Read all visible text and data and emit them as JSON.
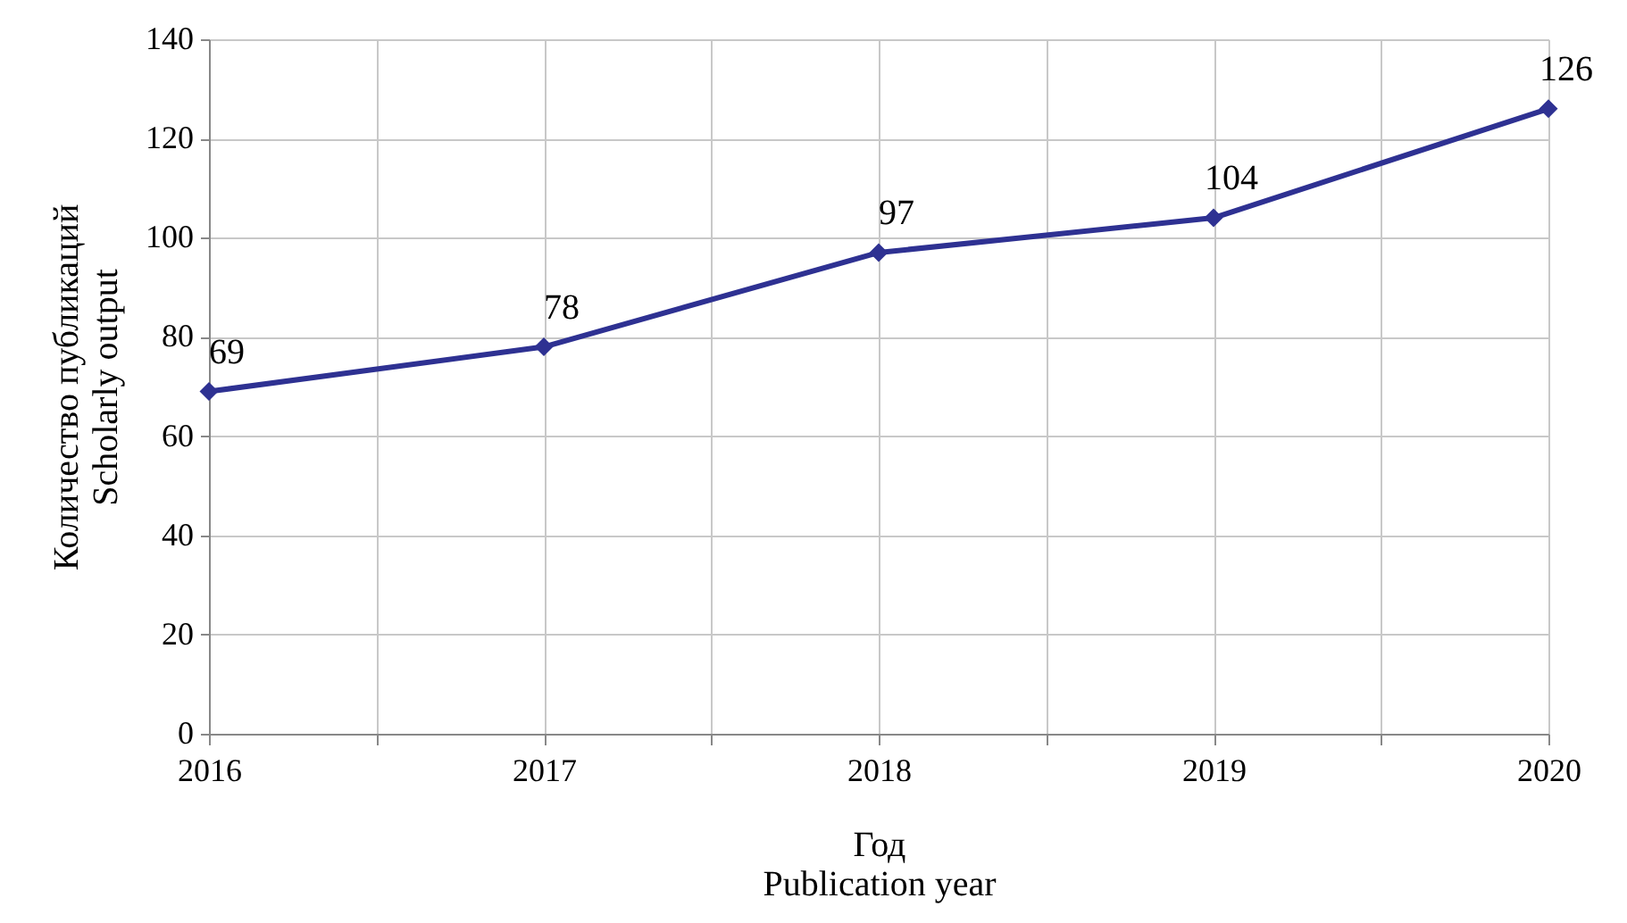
{
  "chart_data": {
    "type": "line",
    "xlabel": "Год\nPublication year",
    "ylabel": "Количество публикаций\nScholarly output",
    "x": [
      2016,
      2017,
      2018,
      2019,
      2020
    ],
    "series": [
      {
        "color": "#2e3192",
        "values": [
          69,
          78,
          97,
          104,
          126
        ]
      }
    ],
    "xlim": [
      2016,
      2020
    ],
    "xticks": [
      2016,
      {
        "value": 2016.5,
        "label": null
      },
      2017,
      {
        "value": 2017.5,
        "label": null
      },
      2018,
      {
        "value": 2018.5,
        "label": null
      },
      2019,
      {
        "value": 2019.5,
        "label": null
      },
      2020
    ],
    "ylim": [
      0,
      140
    ],
    "yticks": [
      0,
      20,
      40,
      60,
      80,
      100,
      120,
      140
    ],
    "grid": true,
    "marker": "diamond",
    "line_style": "solid",
    "data_labels": true
  }
}
